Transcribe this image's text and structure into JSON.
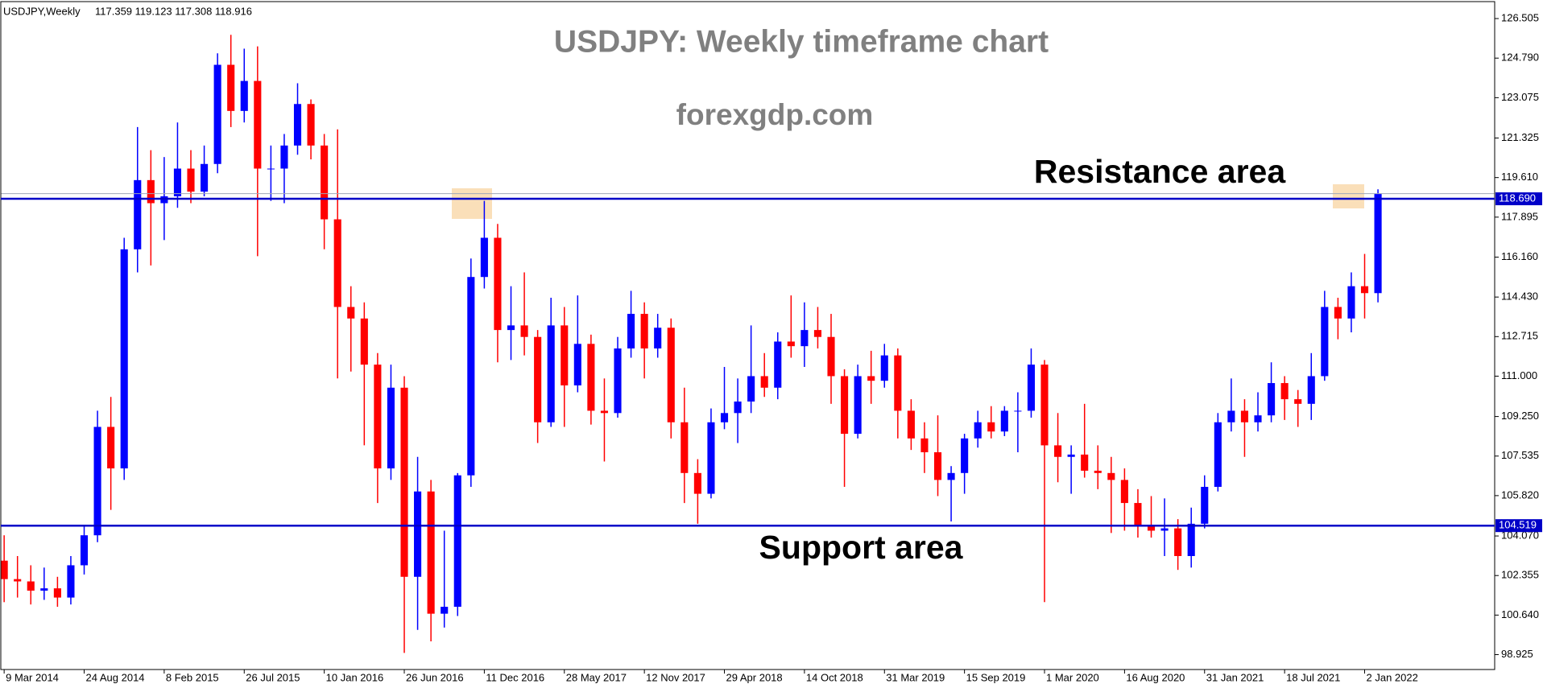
{
  "chart_data": {
    "type": "candlestick",
    "symbol": "USDJPY,Weekly",
    "ohlc_text": "117.359 119.123 117.308 118.916",
    "title": "USDJPY: Weekly timeframe chart",
    "subtitle": "forexgdp.com",
    "annotations": [
      "Resistance area",
      "Support area"
    ],
    "up_color": "#0000ff",
    "down_color": "#ff0000",
    "x": [
      "2014-03-09",
      "2014-04-06",
      "2014-05-04",
      "2014-06-01",
      "2014-06-29",
      "2014-07-27",
      "2014-08-24",
      "2014-09-21",
      "2014-10-19",
      "2014-11-16",
      "2014-12-14",
      "2015-01-11",
      "2015-02-08",
      "2015-03-08",
      "2015-04-05",
      "2015-05-03",
      "2015-05-31",
      "2015-06-28",
      "2015-07-26",
      "2015-08-23",
      "2015-09-20",
      "2015-10-18",
      "2015-11-15",
      "2015-12-13",
      "2016-01-10",
      "2016-02-07",
      "2016-03-06",
      "2016-04-03",
      "2016-05-01",
      "2016-05-29",
      "2016-06-26",
      "2016-07-24",
      "2016-08-21",
      "2016-09-18",
      "2016-10-16",
      "2016-11-13",
      "2016-12-11",
      "2017-01-08",
      "2017-02-05",
      "2017-03-05",
      "2017-04-02",
      "2017-04-30",
      "2017-05-28",
      "2017-06-25",
      "2017-07-23",
      "2017-08-20",
      "2017-09-17",
      "2017-10-15",
      "2017-11-12",
      "2017-12-10",
      "2018-01-07",
      "2018-02-04",
      "2018-03-04",
      "2018-04-01",
      "2018-04-29",
      "2018-05-27",
      "2018-06-24",
      "2018-07-22",
      "2018-08-19",
      "2018-09-16",
      "2018-10-14",
      "2018-11-11",
      "2018-12-09",
      "2019-01-06",
      "2019-02-03",
      "2019-03-03",
      "2019-03-31",
      "2019-04-28",
      "2019-05-26",
      "2019-06-23",
      "2019-07-21",
      "2019-08-18",
      "2019-09-15",
      "2019-10-13",
      "2019-11-10",
      "2019-12-08",
      "2020-01-05",
      "2020-02-02",
      "2020-03-01",
      "2020-03-29",
      "2020-04-26",
      "2020-05-24",
      "2020-06-21",
      "2020-07-19",
      "2020-08-16",
      "2020-09-13",
      "2020-10-11",
      "2020-11-08",
      "2020-12-06",
      "2021-01-03",
      "2021-01-31",
      "2021-02-28",
      "2021-03-28",
      "2021-04-25",
      "2021-05-23",
      "2021-06-20",
      "2021-07-18",
      "2021-08-15",
      "2021-09-12",
      "2021-10-10",
      "2021-11-07",
      "2021-12-05",
      "2022-01-02",
      "2022-01-30"
    ],
    "open": [
      103.0,
      102.2,
      102.1,
      101.7,
      101.8,
      101.4,
      102.8,
      104.1,
      108.8,
      107.0,
      116.5,
      119.5,
      118.5,
      118.8,
      120.0,
      119.0,
      120.2,
      124.5,
      122.5,
      123.8,
      120.0,
      120.0,
      121.0,
      122.8,
      121.0,
      117.8,
      114.0,
      113.5,
      111.5,
      107.0,
      110.5,
      102.3,
      106.0,
      100.7,
      101.0,
      106.7,
      115.3,
      117.0,
      113.0,
      113.2,
      112.7,
      109.0,
      113.2,
      110.6,
      112.4,
      109.5,
      109.4,
      112.2,
      113.7,
      112.2,
      113.1,
      109.0,
      106.8,
      105.9,
      109.0,
      109.4,
      109.9,
      111.0,
      110.5,
      112.5,
      112.3,
      113.0,
      112.7,
      111.0,
      108.5,
      111.0,
      110.8,
      111.9,
      109.5,
      108.3,
      107.7,
      106.5,
      106.8,
      108.3,
      109.0,
      108.6,
      109.5,
      109.5,
      111.5,
      108.0,
      107.5,
      107.6,
      106.9,
      106.8,
      106.5,
      105.5,
      104.5,
      104.3,
      104.4,
      103.2,
      104.6,
      106.2,
      109.0,
      109.5,
      109.0,
      109.3,
      110.7,
      110.0,
      109.8,
      111.0,
      114.0,
      113.5,
      114.9,
      114.6
    ],
    "high": [
      104.1,
      103.2,
      102.8,
      102.7,
      102.3,
      103.2,
      104.5,
      109.5,
      110.1,
      117.0,
      121.8,
      120.8,
      120.5,
      122.0,
      120.8,
      121.0,
      125.0,
      125.8,
      125.2,
      125.3,
      121.0,
      121.5,
      123.7,
      123.0,
      121.5,
      121.7,
      114.9,
      114.2,
      112.0,
      111.5,
      111.0,
      107.5,
      106.5,
      104.3,
      106.8,
      116.1,
      118.6,
      117.6,
      114.9,
      115.5,
      113.0,
      114.4,
      114.0,
      114.5,
      112.8,
      110.9,
      112.7,
      114.7,
      114.2,
      113.7,
      113.5,
      110.5,
      107.4,
      109.6,
      111.4,
      110.9,
      113.2,
      112.0,
      112.9,
      114.5,
      114.2,
      114.0,
      113.7,
      111.3,
      111.5,
      112.1,
      112.4,
      112.2,
      110.0,
      109.0,
      109.3,
      107.1,
      108.5,
      109.5,
      109.7,
      109.7,
      110.3,
      112.2,
      111.7,
      109.4,
      108.0,
      109.8,
      108.0,
      107.5,
      107.0,
      106.1,
      105.8,
      105.7,
      104.8,
      105.3,
      106.7,
      109.4,
      110.9,
      110.0,
      110.3,
      111.6,
      111.0,
      110.4,
      112.0,
      114.7,
      114.4,
      115.5,
      116.3,
      119.1
    ],
    "low": [
      101.2,
      101.4,
      101.1,
      101.3,
      101.0,
      101.1,
      102.4,
      103.8,
      105.2,
      106.5,
      115.5,
      115.8,
      116.9,
      118.3,
      118.5,
      118.8,
      119.8,
      121.8,
      122.0,
      116.2,
      118.6,
      118.5,
      120.6,
      120.4,
      116.5,
      110.9,
      111.2,
      108.0,
      105.5,
      106.5,
      99.0,
      100.0,
      99.5,
      100.1,
      100.6,
      106.2,
      114.8,
      111.6,
      111.7,
      111.9,
      108.1,
      108.8,
      108.8,
      110.3,
      108.9,
      107.3,
      109.2,
      111.8,
      110.9,
      111.8,
      108.3,
      105.5,
      104.6,
      105.7,
      108.7,
      108.1,
      109.4,
      110.1,
      110.0,
      111.8,
      111.4,
      112.2,
      109.8,
      106.2,
      108.3,
      109.8,
      110.5,
      108.3,
      107.8,
      106.8,
      105.8,
      104.7,
      105.9,
      107.9,
      108.3,
      108.4,
      107.7,
      109.2,
      101.2,
      106.4,
      105.9,
      106.6,
      106.1,
      104.2,
      104.3,
      104.0,
      104.0,
      103.2,
      102.6,
      102.7,
      104.4,
      106.0,
      108.6,
      107.5,
      108.6,
      109.0,
      109.1,
      108.8,
      109.1,
      110.8,
      112.6,
      112.9,
      113.5,
      114.2
    ],
    "close": [
      102.2,
      102.1,
      101.7,
      101.8,
      101.4,
      102.8,
      104.1,
      108.8,
      107.0,
      116.5,
      119.5,
      118.5,
      118.8,
      120.0,
      119.0,
      120.2,
      124.5,
      122.5,
      123.8,
      120.0,
      120.0,
      121.0,
      122.8,
      121.0,
      117.8,
      114.0,
      113.5,
      111.5,
      107.0,
      110.5,
      102.3,
      106.0,
      100.7,
      101.0,
      106.7,
      115.3,
      117.0,
      113.0,
      113.2,
      112.7,
      109.0,
      113.2,
      110.6,
      112.4,
      109.5,
      109.4,
      112.2,
      113.7,
      112.2,
      113.1,
      109.0,
      106.8,
      105.9,
      109.0,
      109.4,
      109.9,
      111.0,
      110.5,
      112.5,
      112.3,
      113.0,
      112.7,
      111.0,
      108.5,
      111.0,
      110.8,
      111.9,
      109.5,
      108.3,
      107.7,
      106.5,
      106.8,
      108.3,
      109.0,
      108.6,
      109.5,
      109.5,
      111.5,
      108.0,
      107.5,
      107.6,
      106.9,
      106.8,
      106.5,
      105.5,
      104.5,
      104.3,
      104.4,
      103.2,
      104.6,
      106.2,
      109.0,
      109.5,
      109.0,
      109.3,
      110.7,
      110.0,
      109.8,
      111.0,
      114.0,
      113.5,
      114.9,
      114.6,
      118.9
    ],
    "xlim": [
      "2014-03-02",
      "2022-10-02"
    ],
    "xticks": [
      {
        "value": "2014-03-09",
        "label": "9 Mar 2014"
      },
      {
        "value": "2014-08-24",
        "label": "24 Aug 2014"
      },
      {
        "value": "2015-02-08",
        "label": "8 Feb 2015"
      },
      {
        "value": "2015-07-26",
        "label": "26 Jul 2015"
      },
      {
        "value": "2016-01-10",
        "label": "10 Jan 2016"
      },
      {
        "value": "2016-06-26",
        "label": "26 Jun 2016"
      },
      {
        "value": "2016-12-11",
        "label": "11 Dec 2016"
      },
      {
        "value": "2017-05-28",
        "label": "28 May 2017"
      },
      {
        "value": "2017-11-12",
        "label": "12 Nov 2017"
      },
      {
        "value": "2018-04-29",
        "label": "29 Apr 2018"
      },
      {
        "value": "2018-10-14",
        "label": "14 Oct 2018"
      },
      {
        "value": "2019-03-31",
        "label": "31 Mar 2019"
      },
      {
        "value": "2019-09-15",
        "label": "15 Sep 2019"
      },
      {
        "value": "2020-03-01",
        "label": "1 Mar 2020"
      },
      {
        "value": "2020-08-16",
        "label": "16 Aug 2020"
      },
      {
        "value": "2021-01-31",
        "label": "31 Jan 2021"
      },
      {
        "value": "2021-07-18",
        "label": "18 Jul 2021"
      },
      {
        "value": "2022-01-02",
        "label": "2 Jan 2022"
      }
    ],
    "ylim": [
      98.28,
      127.24
    ],
    "yticks": [
      98.925,
      {
        "value": 100.64,
        "label": "100.640"
      },
      102.355,
      {
        "value": 104.07,
        "label": "104.070"
      },
      {
        "value": 105.82,
        "label": "105.820"
      },
      107.535,
      {
        "value": 109.25,
        "label": "109.250"
      },
      {
        "value": 111,
        "label": "111.000"
      },
      112.715,
      {
        "value": 114.43,
        "label": "114.430"
      },
      {
        "value": 116.16,
        "label": "116.160"
      },
      117.895,
      {
        "value": 119.61,
        "label": "119.610"
      },
      121.325,
      123.075,
      {
        "value": 124.79,
        "label": "124.790"
      },
      126.505
    ],
    "bid_line": {
      "value": 118.916,
      "color": "#a0a8b8"
    },
    "levels": [
      {
        "value": 118.69,
        "label": "118.690",
        "color": "#0000c8"
      },
      {
        "value": 104.519,
        "label": "104.519",
        "color": "#0000c8"
      }
    ]
  }
}
